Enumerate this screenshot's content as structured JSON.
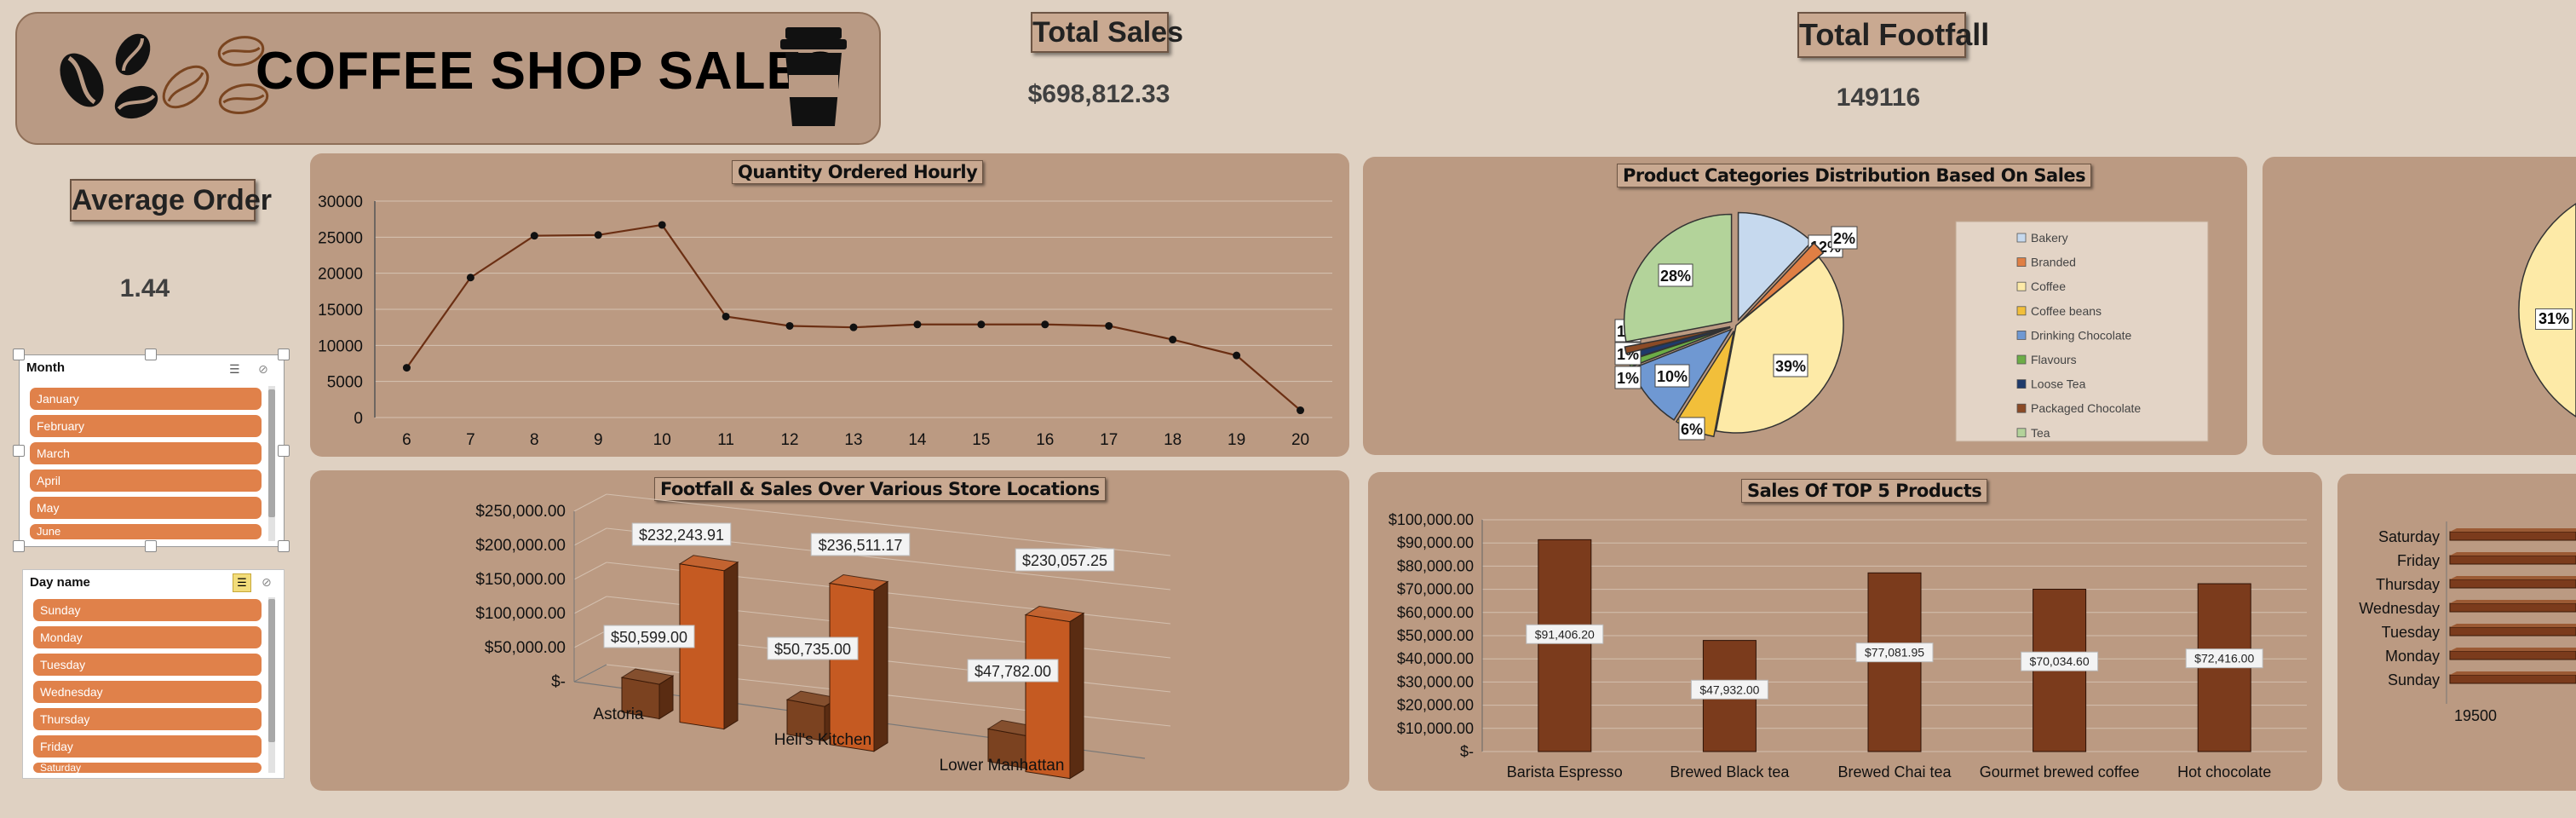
{
  "header": {
    "title": "COFFEE SHOP SALES"
  },
  "kpis": {
    "total_sales_label": "Total Sales",
    "total_sales_value": "$698,812.33",
    "total_footfall_label": "Total Footfall",
    "total_footfall_value": "149116",
    "avg_order_label": "Average Order",
    "avg_order_value": "1.44"
  },
  "slicers": {
    "month": {
      "title": "Month",
      "items": [
        "January",
        "February",
        "March",
        "April",
        "May",
        "June"
      ]
    },
    "day": {
      "title": "Day name",
      "items": [
        "Sunday",
        "Monday",
        "Tuesday",
        "Wednesday",
        "Thursday",
        "Friday",
        "Saturday"
      ]
    }
  },
  "chart_data": [
    {
      "type": "line",
      "title": "Quantity Ordered Hourly",
      "x": [
        6,
        7,
        8,
        9,
        10,
        11,
        12,
        13,
        14,
        15,
        16,
        17,
        18,
        19,
        20
      ],
      "y": [
        6900,
        19400,
        25200,
        25300,
        26700,
        14000,
        12700,
        12500,
        12900,
        12900,
        12900,
        12700,
        10800,
        8600,
        1000
      ],
      "ylim": [
        0,
        30000
      ],
      "yticks": [
        "0",
        "5000",
        "10000",
        "15000",
        "20000",
        "25000",
        "30000"
      ],
      "xlabel": "",
      "ylabel": "",
      "grid": true,
      "color": "#6b2f13"
    },
    {
      "type": "pie",
      "title": "Product Categories Distribution Based On Sales",
      "legend": "right",
      "slices": [
        {
          "name": "Bakery",
          "value": 12,
          "label": "12%",
          "color": "#c6d9ee"
        },
        {
          "name": "Branded",
          "value": 2,
          "label": "2%",
          "color": "#e07f44"
        },
        {
          "name": "Coffee",
          "value": 39,
          "label": "39%",
          "color": "#fdeaa7"
        },
        {
          "name": "Coffee beans",
          "value": 6,
          "label": "6%",
          "color": "#f2bf3a"
        },
        {
          "name": "Drinking Chocolate",
          "value": 10,
          "label": "10%",
          "color": "#6f98d2"
        },
        {
          "name": "Flavours",
          "value": 1,
          "label": "1%",
          "color": "#6cad46"
        },
        {
          "name": "Loose Tea",
          "value": 1,
          "label": "1%",
          "color": "#1f3a6b"
        },
        {
          "name": "Packaged Chocolate",
          "value": 1,
          "label": "1%",
          "color": "#8b4a25"
        },
        {
          "name": "Tea",
          "value": 28,
          "label": "28%",
          "color": "#b3d39a"
        }
      ]
    },
    {
      "type": "bar",
      "title": "Footfall & Sales Over Various Store Locations",
      "categories": [
        "Astoria",
        "Hell's Kitchen",
        "Lower Manhattan"
      ],
      "series": [
        {
          "values": [
            50599,
            50735,
            47782
          ],
          "labels": [
            "$50,599.00",
            "$50,735.00",
            "$47,782.00"
          ],
          "color": "#7b4220"
        },
        {
          "values": [
            232243.91,
            236511.17,
            230057.25
          ],
          "labels": [
            "$232,243.91",
            "$236,511.17",
            "$230,057.25"
          ],
          "color": "#c55a22"
        }
      ],
      "ylim": [
        0,
        250000
      ],
      "yticks": [
        "$-",
        "$50,000.00",
        "$100,000.00",
        "$150,000.00",
        "$200,000.00",
        "$250,000.00"
      ]
    },
    {
      "type": "bar",
      "title": "Sales  Of  TOP 5  Products",
      "categories": [
        "Barista Espresso",
        "Brewed Black tea",
        "Brewed Chai tea",
        "Gourmet brewed coffee",
        "Hot chocolate"
      ],
      "values": [
        91406.2,
        47932.0,
        77081.95,
        70034.6,
        72416.0
      ],
      "labels": [
        "$91,406.20",
        "$47,932.00",
        "$77,081.95",
        "$70,034.60",
        "$72,416.00"
      ],
      "ylim": [
        0,
        100000
      ],
      "yticks": [
        "$-",
        "$10,000.00",
        "$20,000.00",
        "$30,000.00",
        "$40,000.00",
        "$50,000.00",
        "$60,000.00",
        "$70,000.00",
        "$80,000.00",
        "$90,000.00",
        "$100,000.00"
      ],
      "color": "#7b3b1c",
      "grid": true
    },
    {
      "type": "bar",
      "orientation": "horizontal",
      "categories": [
        "Saturday",
        "Friday",
        "Thursday",
        "Wednesday",
        "Tuesday",
        "Monday",
        "Sunday"
      ],
      "xticks": [
        "19500"
      ],
      "note": "cropped at right edge"
    },
    {
      "type": "pie",
      "visible_labels": [
        "31%"
      ],
      "note": "cropped at right edge"
    }
  ]
}
